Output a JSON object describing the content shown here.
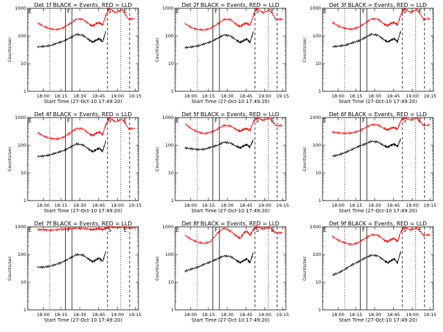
{
  "chart_data": [
    {
      "type": "line",
      "title": "Det 1f BLACK = Events, RED = LLD",
      "ylabel": "Counts/sec",
      "xlabel": "Start Time (27-Oct-10 17:49:20)",
      "x_ticks": [
        "18:00",
        "18:15",
        "18:30",
        "18:45",
        "19:00",
        "19:15"
      ],
      "y_ticks": [
        "1",
        "10",
        "100",
        "1000"
      ],
      "ylim": [
        1,
        1000
      ],
      "yscale": "log",
      "flags": [
        "E",
        "F",
        "S",
        "E"
      ],
      "series": [
        {
          "color": "#ff0000",
          "x": [
            17.9,
            18.0,
            18.1,
            18.2,
            18.3,
            18.4,
            18.5,
            18.6,
            18.7,
            18.75,
            18.8,
            18.85,
            18.9,
            18.95,
            19.0,
            19.1,
            19.2,
            19.3,
            19.4
          ],
          "y": [
            300,
            220,
            180,
            170,
            200,
            280,
            410,
            400,
            260,
            230,
            280,
            300,
            250,
            560,
            1000,
            700,
            900,
            400,
            420
          ]
        },
        {
          "color": "#000000",
          "x": [
            17.9,
            18.0,
            18.1,
            18.2,
            18.3,
            18.4,
            18.5,
            18.6,
            18.7,
            18.75,
            18.8,
            18.85,
            18.9,
            18.95
          ],
          "y": [
            40,
            42,
            45,
            55,
            65,
            85,
            115,
            105,
            70,
            60,
            70,
            80,
            60,
            150
          ]
        }
      ]
    },
    {
      "type": "line",
      "title": "Det 2f BLACK = Events, RED = LLD",
      "ylabel": "Counts/sec",
      "xlabel": "Start Time (27-Oct-10 17:49:20)",
      "x_ticks": [
        "18:00",
        "18:15",
        "18:30",
        "18:45",
        "19:00",
        "19:15"
      ],
      "y_ticks": [
        "1",
        "10",
        "100",
        "1000"
      ],
      "ylim": [
        1,
        1000
      ],
      "yscale": "log",
      "flags": [
        "E",
        "F",
        "S",
        "E"
      ],
      "series": [
        {
          "color": "#ff0000",
          "x": [
            17.9,
            18.0,
            18.1,
            18.2,
            18.3,
            18.4,
            18.5,
            18.6,
            18.7,
            18.75,
            18.8,
            18.85,
            18.9,
            18.95,
            19.0,
            19.1,
            19.2,
            19.3,
            19.4
          ],
          "y": [
            280,
            200,
            170,
            165,
            190,
            270,
            400,
            390,
            250,
            220,
            270,
            290,
            240,
            550,
            1000,
            690,
            880,
            390,
            410
          ]
        },
        {
          "color": "#000000",
          "x": [
            17.9,
            18.0,
            18.1,
            18.2,
            18.3,
            18.4,
            18.5,
            18.6,
            18.7,
            18.75,
            18.8,
            18.85,
            18.9,
            18.95
          ],
          "y": [
            38,
            40,
            44,
            52,
            62,
            82,
            110,
            100,
            68,
            58,
            68,
            78,
            58,
            145
          ]
        }
      ]
    },
    {
      "type": "line",
      "title": "Det 3f BLACK = Events, RED = LLD",
      "ylabel": "Counts/sec",
      "xlabel": "Start Time (27-Oct-10 17:49:20)",
      "x_ticks": [
        "18:00",
        "18:15",
        "18:30",
        "18:45",
        "19:00",
        "19:15"
      ],
      "y_ticks": [
        "1",
        "10",
        "100",
        "1000"
      ],
      "ylim": [
        1,
        1000
      ],
      "yscale": "log",
      "flags": [
        "E",
        "F",
        "S",
        "E"
      ],
      "series": [
        {
          "color": "#ff0000",
          "x": [
            17.9,
            18.0,
            18.1,
            18.2,
            18.3,
            18.4,
            18.5,
            18.6,
            18.7,
            18.75,
            18.8,
            18.85,
            18.9,
            18.95,
            19.0,
            19.1,
            19.2,
            19.3,
            19.4
          ],
          "y": [
            310,
            225,
            185,
            175,
            205,
            285,
            415,
            405,
            265,
            235,
            285,
            305,
            255,
            565,
            1000,
            710,
            910,
            405,
            425
          ]
        },
        {
          "color": "#000000",
          "x": [
            17.9,
            18.0,
            18.1,
            18.2,
            18.3,
            18.4,
            18.5,
            18.6,
            18.7,
            18.75,
            18.8,
            18.85,
            18.9,
            18.95
          ],
          "y": [
            41,
            43,
            46,
            56,
            66,
            86,
            116,
            106,
            71,
            61,
            71,
            81,
            61,
            152
          ]
        }
      ]
    },
    {
      "type": "line",
      "title": "Det 4f BLACK = Events, RED = LLD",
      "ylabel": "Counts/sec",
      "xlabel": "Start Time (27-Oct-10 17:49:20)",
      "x_ticks": [
        "18:00",
        "18:15",
        "18:30",
        "18:45",
        "19:00",
        "19:15"
      ],
      "y_ticks": [
        "1",
        "10",
        "100",
        "1000"
      ],
      "ylim": [
        1,
        1000
      ],
      "yscale": "log",
      "flags": [
        "E",
        "F",
        "S",
        "E"
      ],
      "series": [
        {
          "color": "#ff0000",
          "x": [
            17.9,
            18.0,
            18.1,
            18.2,
            18.3,
            18.4,
            18.5,
            18.6,
            18.7,
            18.75,
            18.8,
            18.85,
            18.9,
            18.95,
            19.0,
            19.1,
            19.2,
            19.3,
            19.4
          ],
          "y": [
            290,
            210,
            175,
            168,
            195,
            275,
            405,
            395,
            255,
            225,
            275,
            295,
            245,
            555,
            1000,
            695,
            890,
            395,
            415
          ]
        },
        {
          "color": "#000000",
          "x": [
            17.9,
            18.0,
            18.1,
            18.2,
            18.3,
            18.4,
            18.5,
            18.6,
            18.7,
            18.75,
            18.8,
            18.85,
            18.9,
            18.95
          ],
          "y": [
            39,
            41,
            45,
            54,
            64,
            84,
            112,
            102,
            69,
            59,
            69,
            79,
            59,
            148
          ]
        }
      ]
    },
    {
      "type": "line",
      "title": "Det 5f BLACK = Events, RED = LLD",
      "ylabel": "Counts/sec",
      "xlabel": "Start Time (27-Oct-10 17:49:20)",
      "x_ticks": [
        "18:00",
        "18:15",
        "18:30",
        "18:45",
        "19:00",
        "19:15"
      ],
      "y_ticks": [
        "1",
        "10",
        "100",
        "1000"
      ],
      "ylim": [
        1,
        1000
      ],
      "yscale": "log",
      "flags": [
        "E",
        "F",
        "S",
        "E"
      ],
      "series": [
        {
          "color": "#ff0000",
          "x": [
            17.9,
            18.0,
            18.1,
            18.2,
            18.3,
            18.4,
            18.5,
            18.6,
            18.7,
            18.75,
            18.8,
            18.85,
            18.9,
            18.95,
            19.0,
            19.1,
            19.2,
            19.3,
            19.4
          ],
          "y": [
            600,
            400,
            300,
            260,
            300,
            380,
            520,
            500,
            360,
            320,
            380,
            400,
            340,
            700,
            1000,
            800,
            950,
            500,
            520
          ]
        },
        {
          "color": "#000000",
          "x": [
            17.9,
            18.0,
            18.1,
            18.2,
            18.3,
            18.4,
            18.5,
            18.6,
            18.7,
            18.75,
            18.8,
            18.85,
            18.9,
            18.95
          ],
          "y": [
            80,
            75,
            70,
            72,
            85,
            100,
            130,
            120,
            90,
            80,
            95,
            105,
            85,
            160
          ]
        }
      ]
    },
    {
      "type": "line",
      "title": "Det 6f BLACK = Events, RED = LLD",
      "ylabel": "Counts/sec",
      "xlabel": "Start Time (27-Oct-10 17:49:20)",
      "x_ticks": [
        "18:00",
        "18:15",
        "18:30",
        "18:45",
        "19:00",
        "19:15"
      ],
      "y_ticks": [
        "1",
        "10",
        "100",
        "1000"
      ],
      "ylim": [
        1,
        1000
      ],
      "yscale": "log",
      "flags": [
        "E",
        "F",
        "S",
        "E"
      ],
      "series": [
        {
          "color": "#ff0000",
          "x": [
            17.9,
            18.0,
            18.1,
            18.2,
            18.3,
            18.4,
            18.5,
            18.6,
            18.7,
            18.75,
            18.8,
            18.85,
            18.9,
            18.95,
            19.0,
            19.1,
            19.2,
            19.3,
            19.4
          ],
          "y": [
            300,
            280,
            270,
            280,
            320,
            420,
            560,
            540,
            400,
            360,
            420,
            440,
            380,
            750,
            1000,
            820,
            960,
            520,
            540
          ]
        },
        {
          "color": "#000000",
          "x": [
            17.9,
            18.0,
            18.1,
            18.2,
            18.3,
            18.4,
            18.5,
            18.6,
            18.7,
            18.75,
            18.8,
            18.85,
            18.9,
            18.95
          ],
          "y": [
            40,
            45,
            55,
            70,
            90,
            110,
            140,
            130,
            95,
            85,
            100,
            110,
            90,
            170
          ]
        }
      ]
    },
    {
      "type": "line",
      "title": "Det 7f BLACK = Events, RED = LLD",
      "ylabel": "Counts/sec",
      "xlabel": "Start Time (27-Oct-10 17:49:20)",
      "x_ticks": [
        "18:00",
        "18:15",
        "18:30",
        "18:45",
        "19:00",
        "19:15"
      ],
      "y_ticks": [
        "1",
        "10",
        "100",
        "1000"
      ],
      "ylim": [
        1,
        1000
      ],
      "yscale": "log",
      "flags": [
        "E",
        "F",
        "S",
        "E"
      ],
      "series": [
        {
          "color": "#ff0000",
          "x": [
            17.9,
            18.0,
            18.1,
            18.2,
            18.3,
            18.4,
            18.5,
            18.6,
            18.7,
            18.75,
            18.8,
            18.85,
            18.9,
            18.95,
            19.0,
            19.1,
            19.2,
            19.3,
            19.4
          ],
          "y": [
            800,
            780,
            760,
            790,
            820,
            850,
            900,
            880,
            820,
            800,
            840,
            860,
            800,
            900,
            1000,
            950,
            980,
            900,
            920
          ]
        },
        {
          "color": "#000000",
          "x": [
            17.9,
            18.0,
            18.1,
            18.2,
            18.3,
            18.4,
            18.5,
            18.6,
            18.7,
            18.75,
            18.8,
            18.85,
            18.9,
            18.95
          ],
          "y": [
            35,
            35,
            38,
            45,
            55,
            75,
            100,
            95,
            65,
            55,
            65,
            75,
            55,
            130
          ]
        }
      ]
    },
    {
      "type": "line",
      "title": "Det 8f BLACK = Events, RED = LLD",
      "ylabel": "Counts/sec",
      "xlabel": "Start Time (27-Oct-10 17:49:20)",
      "x_ticks": [
        "18:00",
        "18:15",
        "18:30",
        "18:45",
        "19:00",
        "19:15"
      ],
      "y_ticks": [
        "1",
        "10",
        "100",
        "1000"
      ],
      "ylim": [
        1,
        1000
      ],
      "yscale": "log",
      "flags": [
        "E",
        "F",
        "S",
        "E"
      ],
      "series": [
        {
          "color": "#ff0000",
          "x": [
            17.9,
            18.0,
            18.1,
            18.2,
            18.3,
            18.4,
            18.5,
            18.6,
            18.7,
            18.75,
            18.8,
            18.85,
            18.9,
            18.95,
            19.0,
            19.1,
            19.2,
            19.3,
            19.4
          ],
          "y": [
            500,
            350,
            280,
            250,
            300,
            600,
            900,
            700,
            450,
            380,
            600,
            700,
            500,
            800,
            1000,
            850,
            950,
            600,
            620
          ]
        },
        {
          "color": "#000000",
          "x": [
            17.9,
            18.0,
            18.1,
            18.2,
            18.3,
            18.4,
            18.5,
            18.6,
            18.7,
            18.75,
            18.8,
            18.85,
            18.9,
            18.95
          ],
          "y": [
            25,
            30,
            35,
            45,
            55,
            70,
            90,
            85,
            60,
            50,
            60,
            70,
            50,
            120
          ]
        }
      ]
    },
    {
      "type": "line",
      "title": "Det 9f BLACK = Events, RED = LLD",
      "ylabel": "Counts/sec",
      "xlabel": "Start Time (27-Oct-10 17:49:20)",
      "x_ticks": [
        "18:00",
        "18:15",
        "18:30",
        "18:45",
        "19:00",
        "19:15"
      ],
      "y_ticks": [
        "1",
        "10",
        "100",
        "1000"
      ],
      "ylim": [
        1,
        1000
      ],
      "yscale": "log",
      "flags": [
        "E",
        "F",
        "S",
        "E"
      ],
      "series": [
        {
          "color": "#ff0000",
          "x": [
            17.9,
            18.0,
            18.1,
            18.2,
            18.3,
            18.4,
            18.5,
            18.6,
            18.7,
            18.75,
            18.8,
            18.85,
            18.9,
            18.95,
            19.0,
            19.1,
            19.2,
            19.3,
            19.4
          ],
          "y": [
            450,
            320,
            260,
            230,
            270,
            380,
            520,
            500,
            330,
            290,
            350,
            380,
            300,
            650,
            1000,
            780,
            920,
            500,
            520
          ]
        },
        {
          "color": "#000000",
          "x": [
            17.9,
            18.0,
            18.1,
            18.2,
            18.3,
            18.4,
            18.5,
            18.6,
            18.7,
            18.75,
            18.8,
            18.85,
            18.9,
            18.95
          ],
          "y": [
            18,
            22,
            30,
            42,
            55,
            75,
            95,
            90,
            60,
            50,
            60,
            70,
            50,
            130
          ]
        }
      ]
    }
  ]
}
